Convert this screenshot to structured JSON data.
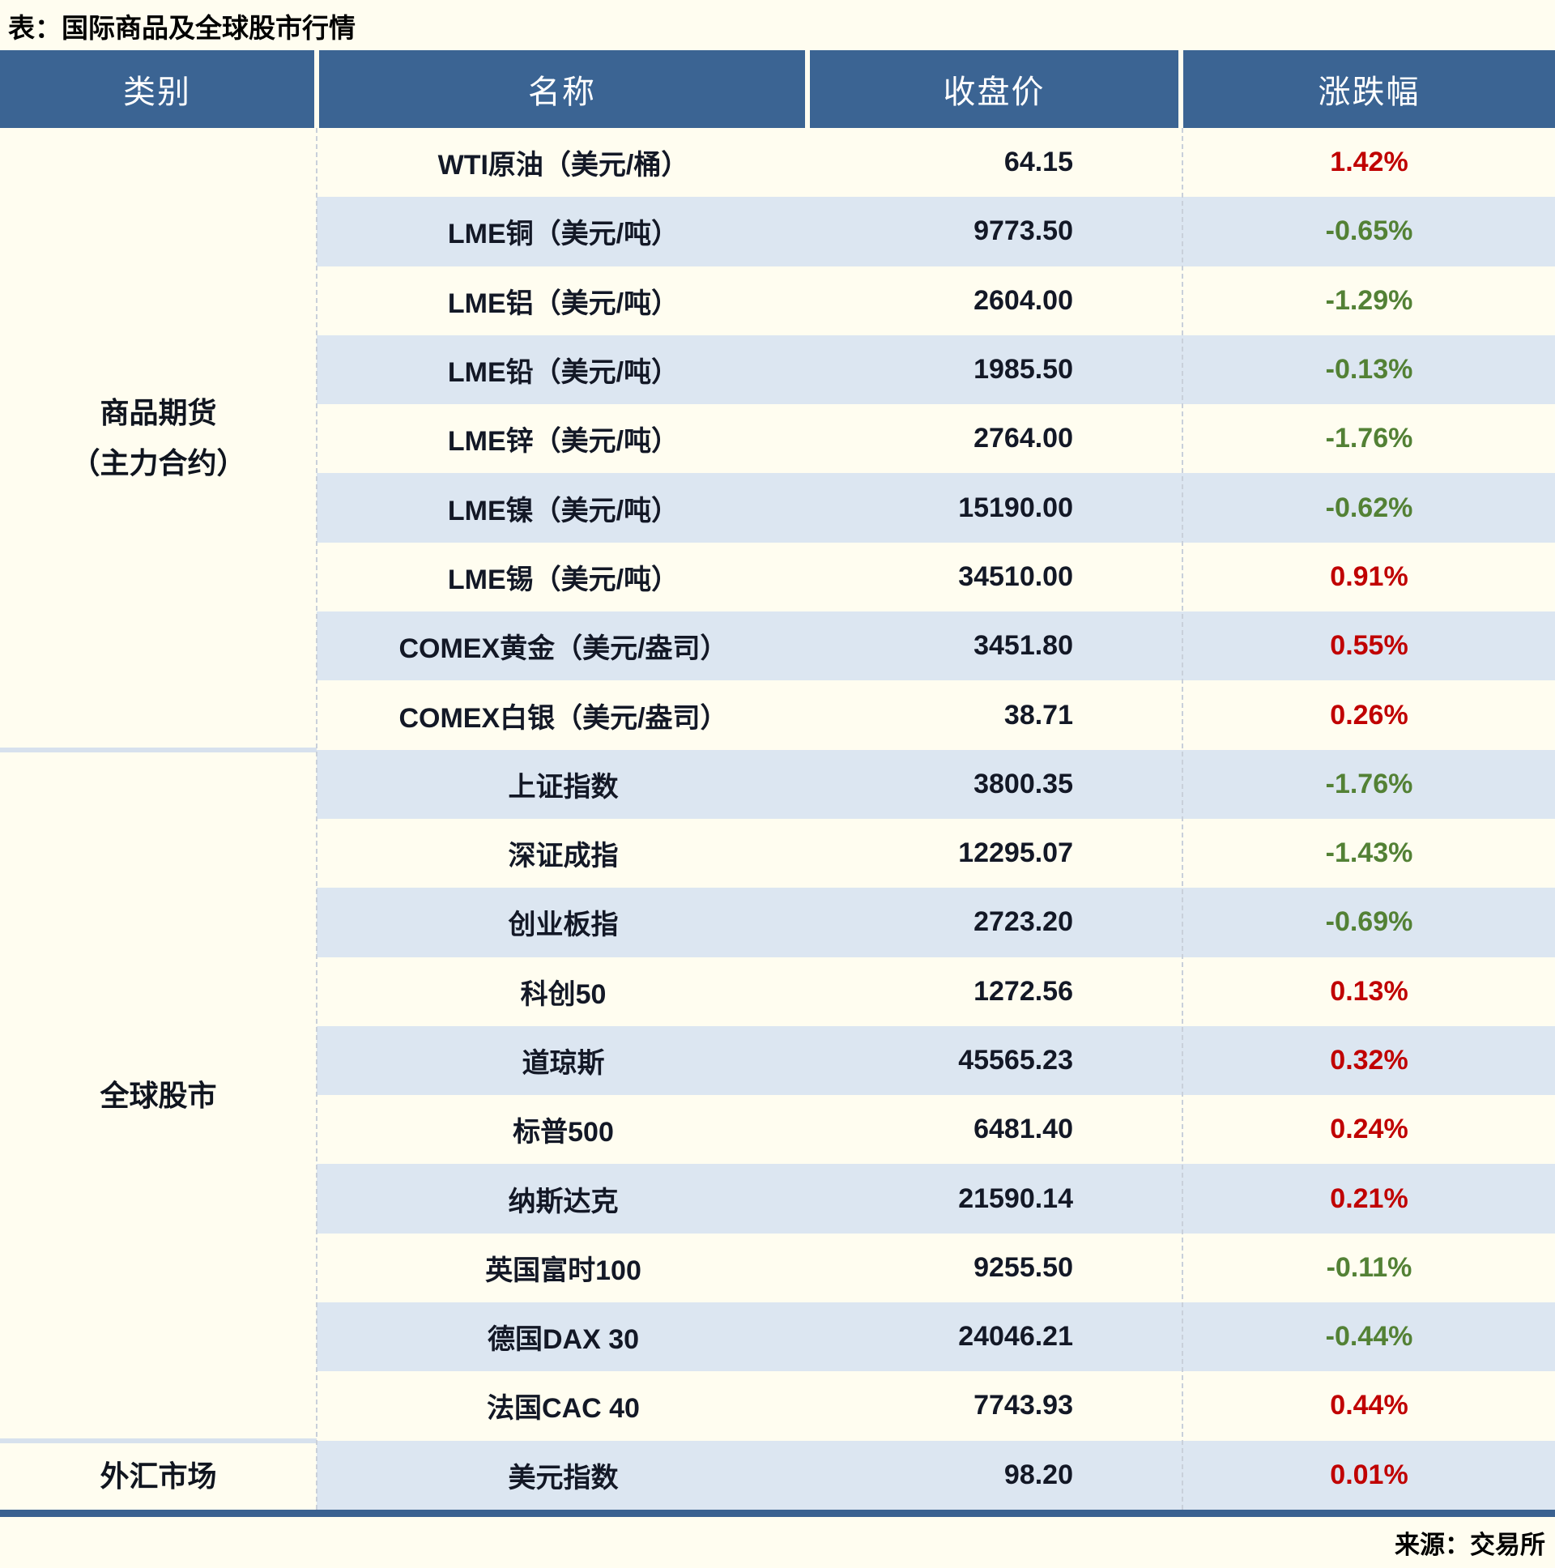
{
  "title": "表：国际商品及全球股市行情",
  "source": "来源：交易所",
  "columns": [
    "类别",
    "名称",
    "收盘价",
    "涨跌幅"
  ],
  "colors": {
    "header_bg": "#3b6493",
    "row_alt_bg": "#dce6f1",
    "page_bg": "#fffdf0",
    "positive": "#c00000",
    "negative": "#538135",
    "bottom_bar": "#3a6190"
  },
  "groups": [
    {
      "category": "商品期货（主力合约）",
      "category_lines": [
        "商品期货",
        "（主力合约）"
      ],
      "rows": [
        {
          "name": "WTI原油（美元/桶）",
          "close": "64.15",
          "change": "1.42%"
        },
        {
          "name": "LME铜（美元/吨）",
          "close": "9773.50",
          "change": "-0.65%"
        },
        {
          "name": "LME铝（美元/吨）",
          "close": "2604.00",
          "change": "-1.29%"
        },
        {
          "name": "LME铅（美元/吨）",
          "close": "1985.50",
          "change": "-0.13%"
        },
        {
          "name": "LME锌（美元/吨）",
          "close": "2764.00",
          "change": "-1.76%"
        },
        {
          "name": "LME镍（美元/吨）",
          "close": "15190.00",
          "change": "-0.62%"
        },
        {
          "name": "LME锡（美元/吨）",
          "close": "34510.00",
          "change": "0.91%"
        },
        {
          "name": "COMEX黄金（美元/盎司）",
          "close": "3451.80",
          "change": "0.55%"
        },
        {
          "name": "COMEX白银（美元/盎司）",
          "close": "38.71",
          "change": "0.26%"
        }
      ]
    },
    {
      "category": "全球股市",
      "category_lines": [
        "全球股市"
      ],
      "rows": [
        {
          "name": "上证指数",
          "close": "3800.35",
          "change": "-1.76%"
        },
        {
          "name": "深证成指",
          "close": "12295.07",
          "change": "-1.43%"
        },
        {
          "name": "创业板指",
          "close": "2723.20",
          "change": "-0.69%"
        },
        {
          "name": "科创50",
          "close": "1272.56",
          "change": "0.13%"
        },
        {
          "name": "道琼斯",
          "close": "45565.23",
          "change": "0.32%"
        },
        {
          "name": "标普500",
          "close": "6481.40",
          "change": "0.24%"
        },
        {
          "name": "纳斯达克",
          "close": "21590.14",
          "change": "0.21%"
        },
        {
          "name": "英国富时100",
          "close": "9255.50",
          "change": "-0.11%"
        },
        {
          "name": "德国DAX 30",
          "close": "24046.21",
          "change": "-0.44%"
        },
        {
          "name": "法国CAC 40",
          "close": "7743.93",
          "change": "0.44%"
        }
      ]
    },
    {
      "category": "外汇市场",
      "category_lines": [
        "外汇市场"
      ],
      "rows": [
        {
          "name": "美元指数",
          "close": "98.20",
          "change": "0.01%"
        }
      ]
    }
  ],
  "chart_data": {
    "type": "table",
    "title": "表：国际商品及全球股市行情",
    "columns": [
      "类别",
      "名称",
      "收盘价",
      "涨跌幅"
    ],
    "rows": [
      [
        "商品期货（主力合约）",
        "WTI原油（美元/桶）",
        64.15,
        "1.42%"
      ],
      [
        "商品期货（主力合约）",
        "LME铜（美元/吨）",
        9773.5,
        "-0.65%"
      ],
      [
        "商品期货（主力合约）",
        "LME铝（美元/吨）",
        2604.0,
        "-1.29%"
      ],
      [
        "商品期货（主力合约）",
        "LME铅（美元/吨）",
        1985.5,
        "-0.13%"
      ],
      [
        "商品期货（主力合约）",
        "LME锌（美元/吨）",
        2764.0,
        "-1.76%"
      ],
      [
        "商品期货（主力合约）",
        "LME镍（美元/吨）",
        15190.0,
        "-0.62%"
      ],
      [
        "商品期货（主力合约）",
        "LME锡（美元/吨）",
        34510.0,
        "0.91%"
      ],
      [
        "商品期货（主力合约）",
        "COMEX黄金（美元/盎司）",
        3451.8,
        "0.55%"
      ],
      [
        "商品期货（主力合约）",
        "COMEX白银（美元/盎司）",
        38.71,
        "0.26%"
      ],
      [
        "全球股市",
        "上证指数",
        3800.35,
        "-1.76%"
      ],
      [
        "全球股市",
        "深证成指",
        12295.07,
        "-1.43%"
      ],
      [
        "全球股市",
        "创业板指",
        2723.2,
        "-0.69%"
      ],
      [
        "全球股市",
        "科创50",
        1272.56,
        "0.13%"
      ],
      [
        "全球股市",
        "道琼斯",
        45565.23,
        "0.32%"
      ],
      [
        "全球股市",
        "标普500",
        6481.4,
        "0.24%"
      ],
      [
        "全球股市",
        "纳斯达克",
        21590.14,
        "0.21%"
      ],
      [
        "全球股市",
        "英国富时100",
        9255.5,
        "-0.11%"
      ],
      [
        "全球股市",
        "德国DAX 30",
        24046.21,
        "-0.44%"
      ],
      [
        "全球股市",
        "法国CAC 40",
        7743.93,
        "0.44%"
      ],
      [
        "外汇市场",
        "美元指数",
        98.2,
        "0.01%"
      ]
    ],
    "notes": "red = rise (positive), green = fall (negative); source: 来源：交易所"
  }
}
